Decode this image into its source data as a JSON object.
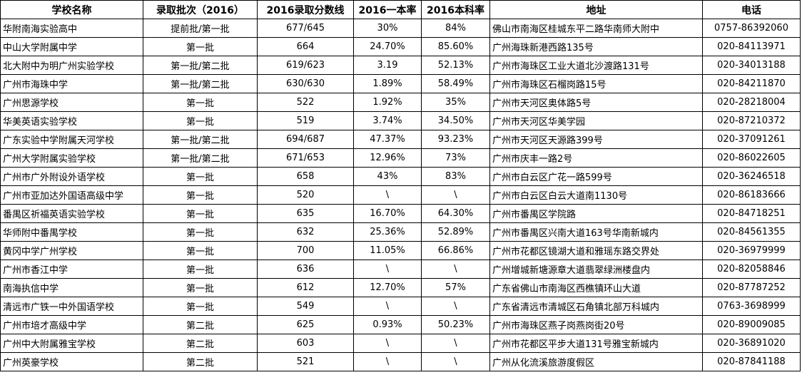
{
  "headers": [
    "学校名称",
    "录取批次（2016）",
    "2016录取分数线",
    "2016一本率",
    "2016本科率",
    "地址",
    "电话"
  ],
  "rows": [
    [
      "华附南海实验高中",
      "提前批/第一批",
      "677/645",
      "30%",
      "84%",
      "佛山市南海区桂城东平二路华南师大附中",
      "0757-86392060"
    ],
    [
      "中山大学附属中学",
      "第一批",
      "664",
      "24.70%",
      "85.60%",
      "广州海珠新港西路135号",
      "020-84113971"
    ],
    [
      "北大附中为明广州实验学校",
      "第一批/第二批",
      "619/623",
      "3.19",
      "52.13%",
      "广州市海珠区工业大道北沙渡路131号",
      "020-34013188"
    ],
    [
      "广州市海珠中学",
      "第一批/第二批",
      "630/630",
      "1.89%",
      "58.49%",
      "广州市海珠区石榴岗路15号",
      "020-84211870"
    ],
    [
      "广州思源学校",
      "第一批",
      "522",
      "1.92%",
      "35%",
      "广州市天河区奥体路5号",
      "020-28218004"
    ],
    [
      "华美英语实验学校",
      "第一批",
      "519",
      "3.74%",
      "34.50%",
      "广州市天河区华美学园",
      "020-87210372"
    ],
    [
      "广东实验中学附属天河学校",
      "第一批/第二批",
      "694/687",
      "47.37%",
      "93.23%",
      "广州市天河区天源路399号",
      "020-37091261"
    ],
    [
      "广州大学附属实验学校",
      "第一批/第二批",
      "671/653",
      "12.96%",
      "73%",
      "广州市庆丰一路2号",
      "020-86022605"
    ],
    [
      "广州市广外附设外语学校",
      "第一批",
      "658",
      "43%",
      "83%",
      " 广州市白云区广花一路599号",
      "020-36246518"
    ],
    [
      "广州市亚加达外国语高级中学",
      "第一批",
      "520",
      "\\",
      "\\",
      "广州市白云区白云大道南1130号",
      "020-86183666"
    ],
    [
      "番禺区祈福英语实验学校",
      "第一批",
      "635",
      "16.70%",
      "64.30%",
      "广州市番禺区学院路",
      "020-84718251"
    ],
    [
      "华师附中番禺学校",
      "第一批",
      "632",
      "25.36%",
      "52.89%",
      "广州市番禺区兴南大道163号华南新城内",
      "020-84561355"
    ],
    [
      "黄冈中学广州学校",
      "第一批",
      "700",
      "11.05%",
      "66.86%",
      "广州市花都区镜湖大道和雅瑶东路交界处",
      "020-36979999"
    ],
    [
      "广州市香江中学",
      "第一批",
      "636",
      "\\",
      "\\",
      "广州增城新塘源章大道翡翠绿洲楼盘内",
      "020-82058846"
    ],
    [
      "南海执信中学",
      "第一批",
      "612",
      "12.70%",
      "57%",
      "广东省佛山市南海区西樵镇环山大道",
      "020-87787252"
    ],
    [
      "清远市广铁一中外国语学校",
      "第一批",
      "549",
      "\\",
      "\\",
      "广东省清远市清城区石角镇北部万科城内",
      "0763-3698999"
    ],
    [
      "广州市培才高级中学",
      "第二批",
      "625",
      "0.93%",
      "50.23%",
      "广州市海珠区燕子岗燕岗街20号",
      "020-89009085"
    ],
    [
      "广州中大附属雅宝学校",
      "第二批",
      "603",
      "\\",
      "\\",
      "广州市花都区平步大道131号雅宝新城内",
      "020-36891020"
    ],
    [
      "广州英豪学校",
      "第二批",
      "521",
      "\\",
      "\\",
      "广州从化流溪旅游度假区",
      "020-87841188"
    ]
  ]
}
